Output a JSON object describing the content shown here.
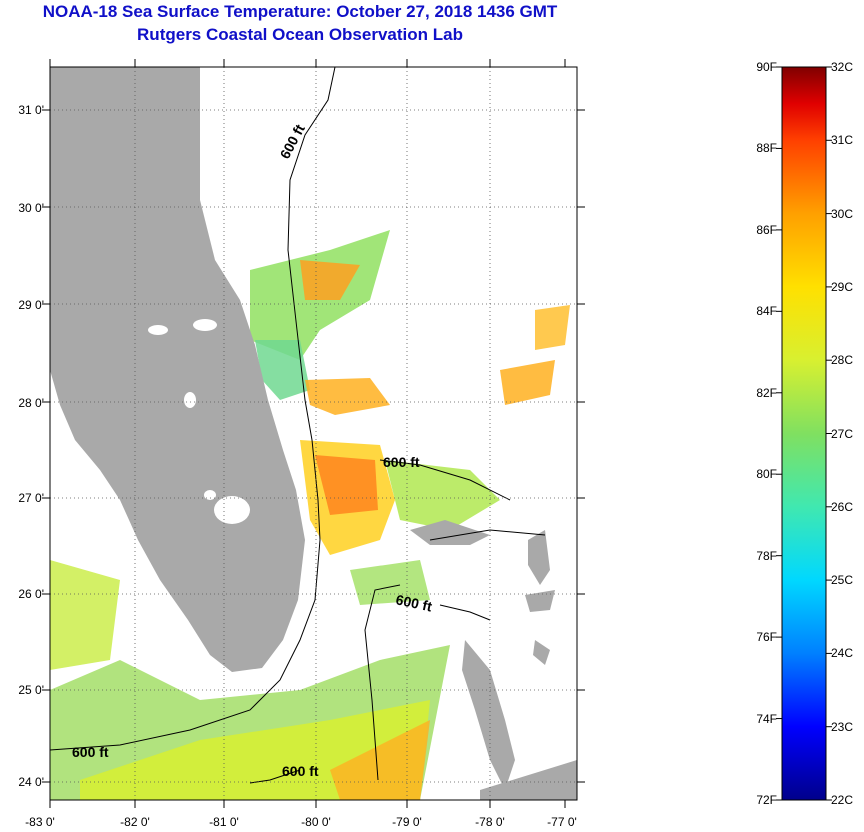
{
  "title": {
    "line1": "NOAA-18 Sea Surface Temperature:  October 27, 2018 1436 GMT",
    "line2": "Rutgers Coastal Ocean Observation Lab"
  },
  "map": {
    "lon_range": [
      -83,
      -76.8
    ],
    "lat_range": [
      23.8,
      31.4
    ],
    "x_tick_labels": [
      "-83 0'",
      "-82 0'",
      "-81 0'",
      "-80 0'",
      "-79 0'",
      "-78 0'",
      "-77 0'"
    ],
    "y_tick_labels": [
      "31 0'",
      "30 0'",
      "29 0'",
      "28 0'",
      "27 0'",
      "26 0'",
      "25 0'",
      "24 0'"
    ],
    "contour_labels": [
      "600 ft",
      "600 ft",
      "600 ft",
      "600 ft",
      "600 ft"
    ],
    "colors": {
      "land": "#a9a9a9",
      "background": "#ffffff",
      "title": "#1010c8"
    }
  },
  "colorbar": {
    "fahrenheit_labels": [
      "90F",
      "88F",
      "86F",
      "84F",
      "82F",
      "80F",
      "78F",
      "76F",
      "74F",
      "72F"
    ],
    "celsius_labels": [
      "32C",
      "31C",
      "30C",
      "29C",
      "28C",
      "27C",
      "26C",
      "25C",
      "24C",
      "23C",
      "22C"
    ],
    "colors": [
      "#00008b",
      "#0000ff",
      "#0080ff",
      "#00d8ff",
      "#40e8b0",
      "#80e060",
      "#d8f030",
      "#ffe000",
      "#ffa000",
      "#ff4000",
      "#e00000",
      "#800000"
    ]
  }
}
